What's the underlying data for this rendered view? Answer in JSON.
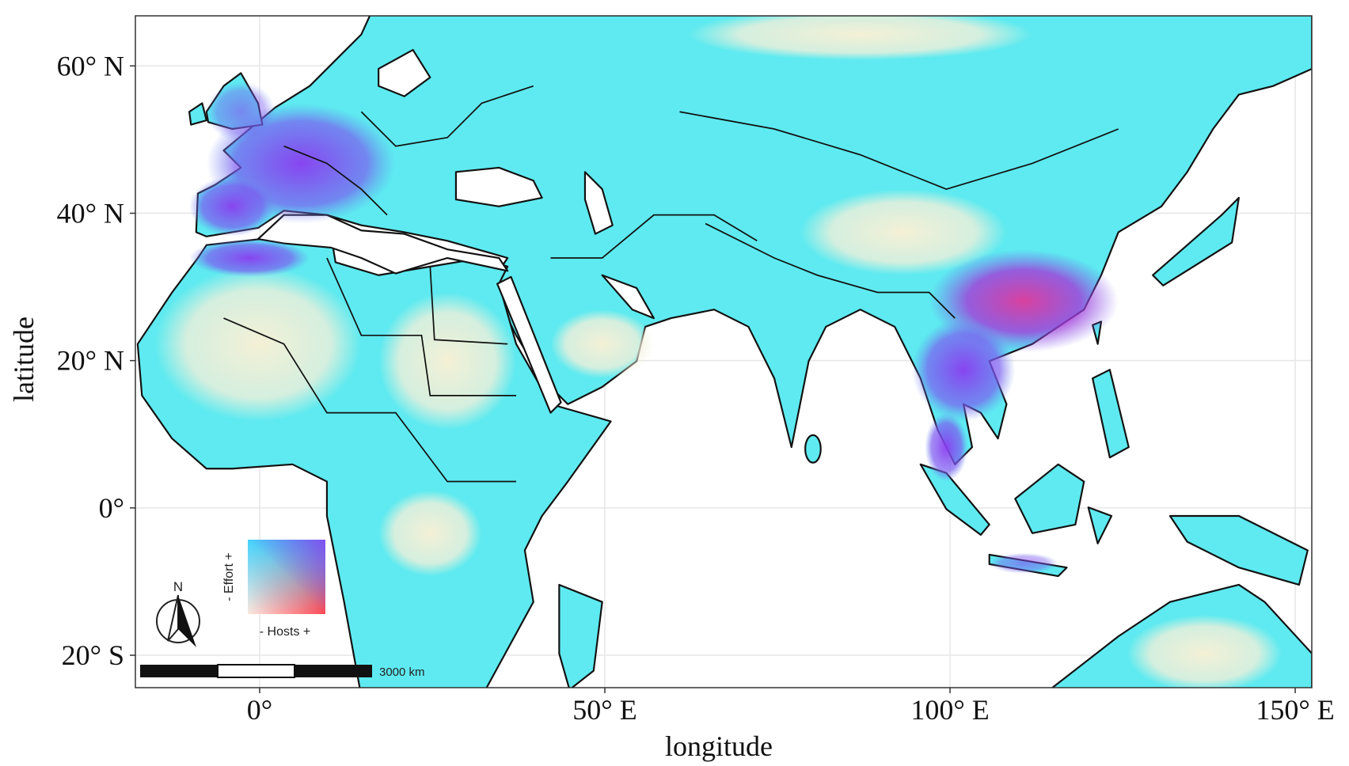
{
  "map": {
    "x_axis": {
      "label": "longitude",
      "lim": [
        -18,
        152.4
      ],
      "ticks": [
        {
          "value": 0,
          "label": "0°"
        },
        {
          "value": 50,
          "label": "50° E"
        },
        {
          "value": 100,
          "label": "100° E"
        },
        {
          "value": 150,
          "label": "150° E"
        }
      ]
    },
    "y_axis": {
      "label": "latitude",
      "lim": [
        -24.4,
        66.8
      ],
      "ticks": [
        {
          "value": 60,
          "label": "60° N"
        },
        {
          "value": 40,
          "label": "40° N"
        },
        {
          "value": 20,
          "label": "20° N"
        },
        {
          "value": 0,
          "label": "0°"
        },
        {
          "value": -20,
          "label": "20° S"
        }
      ]
    },
    "legend": {
      "y_label": "- Effort +",
      "x_label": "- Hosts +"
    },
    "compass": "N",
    "scale_bar": "3000 km"
  }
}
